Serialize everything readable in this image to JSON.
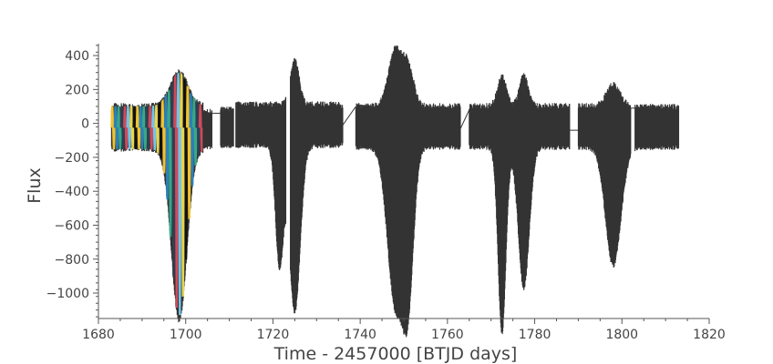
{
  "chart_data": {
    "type": "line",
    "xlabel": "Time - 2457000 [BTJD days]",
    "ylabel": "Flux",
    "xlim": [
      1680,
      1820
    ],
    "ylim": [
      -1150,
      470
    ],
    "x_ticks": [
      1680,
      1700,
      1720,
      1740,
      1760,
      1780,
      1800,
      1820
    ],
    "x_tick_labels": [
      "1680",
      "1700",
      "1720",
      "1740",
      "1760",
      "1780",
      "1800",
      "1820"
    ],
    "y_ticks": [
      400,
      200,
      0,
      -200,
      -400,
      -600,
      -800,
      -1000
    ],
    "y_tick_labels": [
      "400",
      "200",
      "0",
      "−200",
      "−400",
      "−600",
      "−800",
      "−1000"
    ],
    "grid": false,
    "series_color": "#333333",
    "overlay_colors": [
      "#f0c22e",
      "#2d7fb8",
      "#36a88a",
      "#2f3f53",
      "#cf4a5a",
      "#72c4e8",
      "#e8d44d",
      "#111111"
    ],
    "segments": [
      {
        "x": [
          1683,
          1704
        ],
        "upper": 100,
        "lower": -150,
        "colored": true
      },
      {
        "x": [
          1704,
          1706
        ],
        "upper": 70,
        "lower": -140
      },
      {
        "x": [
          1708,
          1711
        ],
        "upper": 80,
        "lower": -130
      },
      {
        "x": [
          1711.5,
          1723
        ],
        "upper": 110,
        "lower": -130
      },
      {
        "x": [
          1724,
          1736
        ],
        "upper": 110,
        "lower": -130
      },
      {
        "x": [
          1739,
          1750
        ],
        "upper": 100,
        "lower": -140
      },
      {
        "x": [
          1750,
          1763
        ],
        "upper": 100,
        "lower": -140
      },
      {
        "x": [
          1765,
          1774
        ],
        "upper": 100,
        "lower": -140
      },
      {
        "x": [
          1774,
          1788
        ],
        "upper": 100,
        "lower": -140
      },
      {
        "x": [
          1790,
          1802
        ],
        "upper": 100,
        "lower": -140
      },
      {
        "x": [
          1803,
          1813
        ],
        "upper": 95,
        "lower": -140
      }
    ],
    "dips": [
      {
        "x": 1698.5,
        "flux": -1010,
        "width": 3.5
      },
      {
        "x": 1721.5,
        "flux": -710,
        "width": 1.8
      },
      {
        "x": 1725.0,
        "flux": -980,
        "width": 2.5
      },
      {
        "x": 1748.0,
        "flux": -920,
        "width": 3.5
      },
      {
        "x": 1751.0,
        "flux": -840,
        "width": 2.5
      },
      {
        "x": 1772.5,
        "flux": -1100,
        "width": 1.8
      },
      {
        "x": 1777.5,
        "flux": -830,
        "width": 2.5
      },
      {
        "x": 1798.0,
        "flux": -700,
        "width": 3.5
      }
    ],
    "peaks": [
      {
        "x": 1698.5,
        "flux": 300,
        "width": 4
      },
      {
        "x": 1725.0,
        "flux": 360,
        "width": 2
      },
      {
        "x": 1748.0,
        "flux": 430,
        "width": 3
      },
      {
        "x": 1751.0,
        "flux": 330,
        "width": 2.5
      },
      {
        "x": 1772.5,
        "flux": 280,
        "width": 2
      },
      {
        "x": 1777.5,
        "flux": 280,
        "width": 2
      },
      {
        "x": 1798.0,
        "flux": 230,
        "width": 3
      }
    ],
    "gap_lines": [
      {
        "x": [
          1706,
          1708
        ],
        "flux": [
          60,
          60
        ]
      },
      {
        "x": [
          1718,
          1721
        ],
        "flux": [
          -50,
          -50
        ]
      },
      {
        "x": [
          1736,
          1739
        ],
        "flux": [
          -10,
          100
        ]
      },
      {
        "x": [
          1748.5,
          1751.5
        ],
        "flux": [
          300,
          300
        ]
      },
      {
        "x": [
          1763,
          1765
        ],
        "flux": [
          -30,
          80
        ]
      },
      {
        "x": [
          1772,
          1776
        ],
        "flux": [
          -70,
          -70
        ]
      },
      {
        "x": [
          1786,
          1790
        ],
        "flux": [
          -40,
          -40
        ]
      },
      {
        "x": [
          1802,
          1804
        ],
        "flux": [
          90,
          90
        ]
      }
    ]
  }
}
